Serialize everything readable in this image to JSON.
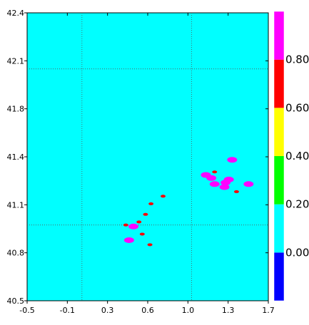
{
  "map": {
    "x_ticks": [
      "-0.5",
      "-0.1",
      "0.3",
      "0.6",
      "1.0",
      "1.3",
      "1.7"
    ],
    "y_ticks": [
      "42.4",
      "42.1",
      "41.8",
      "41.4",
      "41.1",
      "40.8",
      "40.5"
    ],
    "xlim": [
      -0.5,
      1.7
    ],
    "ylim": [
      40.5,
      42.4
    ],
    "background_color": "#00FFFF",
    "boundary_lines": {
      "vertical_x": [
        -0.0,
        1.0
      ],
      "horizontal_y": [
        42.03,
        41.0
      ]
    },
    "blobs": [
      {
        "lon": 1.13,
        "lat": 41.33,
        "level": 0.95
      },
      {
        "lon": 1.18,
        "lat": 41.31,
        "level": 0.95
      },
      {
        "lon": 1.21,
        "lat": 41.27,
        "level": 0.95
      },
      {
        "lon": 1.31,
        "lat": 41.28,
        "level": 0.95
      },
      {
        "lon": 1.34,
        "lat": 41.3,
        "level": 0.95
      },
      {
        "lon": 1.3,
        "lat": 41.25,
        "level": 0.95
      },
      {
        "lon": 1.37,
        "lat": 41.43,
        "level": 0.95
      },
      {
        "lon": 1.41,
        "lat": 41.22,
        "level": 0.7
      },
      {
        "lon": 1.52,
        "lat": 41.27,
        "level": 0.95
      },
      {
        "lon": 1.21,
        "lat": 41.35,
        "level": 0.7
      },
      {
        "lon": 0.4,
        "lat": 41.0,
        "level": 0.7
      },
      {
        "lon": 0.47,
        "lat": 40.99,
        "level": 0.95
      },
      {
        "lon": 0.52,
        "lat": 41.02,
        "level": 0.7
      },
      {
        "lon": 0.55,
        "lat": 40.94,
        "level": 0.7
      },
      {
        "lon": 0.58,
        "lat": 41.07,
        "level": 0.7
      },
      {
        "lon": 0.43,
        "lat": 40.9,
        "level": 0.95
      },
      {
        "lon": 0.63,
        "lat": 41.14,
        "level": 0.7
      },
      {
        "lon": 0.74,
        "lat": 41.19,
        "level": 0.7
      },
      {
        "lon": 0.62,
        "lat": 40.87,
        "level": 0.7
      }
    ]
  },
  "colorbar": {
    "labels": [
      "0.80",
      "0.60",
      "0.40",
      "0.20",
      "0.00"
    ],
    "bands": [
      {
        "color": "#0000FF"
      },
      {
        "color": "#00FFFF"
      },
      {
        "color": "#00FF00"
      },
      {
        "color": "#FFFF00"
      },
      {
        "color": "#FF0000"
      },
      {
        "color": "#FF00FF"
      }
    ]
  }
}
